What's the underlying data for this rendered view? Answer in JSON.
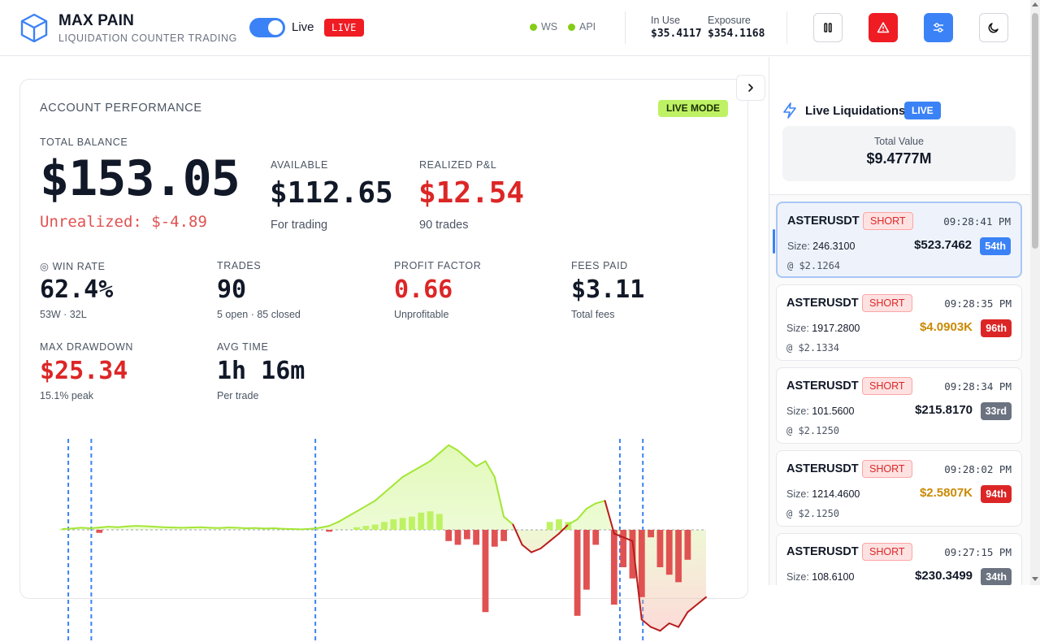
{
  "header": {
    "title": "MAX PAIN",
    "subtitle": "LIQUIDATION COUNTER TRADING",
    "toggle_label": "Live",
    "live_badge": "LIVE",
    "ws_label": "WS",
    "api_label": "API",
    "in_use_label": "In Use",
    "in_use_value": "$35.4117",
    "exposure_label": "Exposure",
    "exposure_value": "$354.1168",
    "icons": [
      "cube-logo-icon",
      "pause-icon",
      "alert-triangle-icon",
      "sliders-icon",
      "moon-icon"
    ],
    "colors": {
      "accent": "#3b82f6",
      "danger": "#ef1c24",
      "ok": "#84cc16"
    }
  },
  "performance": {
    "title": "ACCOUNT PERFORMANCE",
    "mode_badge": "LIVE MODE",
    "total_balance_label": "TOTAL BALANCE",
    "total_balance": "$153.05",
    "unrealized": "Unrealized: $-4.89",
    "available_label": "AVAILABLE",
    "available": "$112.65",
    "available_sub": "For trading",
    "realized_label": "REALIZED P&L",
    "realized": "$12.54",
    "realized_sub": "90 trades",
    "win_rate_label": "WIN RATE",
    "win_rate": "62.4%",
    "win_rate_sub": "53W · 32L",
    "trades_label": "TRADES",
    "trades": "90",
    "trades_sub": "5 open · 85 closed",
    "profit_factor_label": "PROFIT FACTOR",
    "profit_factor": "0.66",
    "profit_factor_sub": "Unprofitable",
    "fees_label": "FEES PAID",
    "fees": "$3.11",
    "fees_sub": "Total fees",
    "drawdown_label": "MAX DRAWDOWN",
    "drawdown": "$25.34",
    "drawdown_sub": "15.1% peak",
    "avg_time_label": "AVG TIME",
    "avg_time": "1h 16m",
    "avg_time_sub": "Per trade"
  },
  "chart_data": {
    "type": "area",
    "series": [
      {
        "values": [
          0.3,
          0.5,
          0.8,
          0.6,
          0.9,
          1.2,
          1.0,
          1.3,
          1.5,
          1.4,
          1.2,
          1.0,
          0.9,
          0.8,
          0.9,
          1.0,
          0.8,
          0.7,
          0.9,
          0.8,
          0.6,
          0.7,
          0.5,
          0.6,
          0.4,
          0.3,
          0.2,
          0.4,
          0.8,
          1.5,
          3.0,
          5.0,
          7.0,
          9.0,
          11.0,
          14.0,
          17.0,
          20.0,
          22.0,
          24.0,
          26.0,
          29.0,
          32.0,
          30.0,
          27.0,
          24.0,
          26.0,
          20.0,
          5.0,
          2.0,
          -4.0,
          -6.0,
          -5.0,
          -3.0,
          -1.0,
          2.0,
          4.0,
          8.0,
          10.0,
          11.0,
          -1.0,
          -2.0,
          -3.0,
          -24.0,
          -26.0,
          -27.0,
          -25.0,
          -26.0,
          -22.0,
          -20.0,
          -18.0
        ]
      },
      {
        "values": [
          0.2,
          0,
          0,
          0,
          -0.8,
          0,
          0,
          0,
          0,
          0,
          0,
          0,
          0,
          0,
          0,
          0,
          0,
          0,
          0,
          0,
          0,
          0,
          0,
          0,
          0,
          0,
          0,
          0,
          0,
          -0.5,
          0,
          0,
          1.0,
          1.5,
          2.0,
          3.0,
          4.0,
          4.5,
          5.0,
          6.5,
          7.0,
          6.0,
          -3.0,
          -4.0,
          -2.5,
          -4.0,
          -22.0,
          -4.5,
          -3.0,
          0,
          0,
          0,
          0,
          3.0,
          4.0,
          3.0,
          -23.0,
          -16.0,
          -4.0,
          0,
          -20.0,
          -10.0,
          -13.0,
          -18.0,
          -2.0,
          -10.0,
          -12.0,
          -14.0,
          -8.0,
          0,
          0
        ]
      }
    ],
    "vlines": [
      1,
      5,
      44,
      97,
      101
    ],
    "ylim": [
      -30,
      35
    ]
  },
  "liquidations": {
    "title": "Live Liquidations",
    "badge": "LIVE",
    "total_label": "Total Value",
    "total_value": "$9.4777M",
    "items": [
      {
        "symbol": "ASTERUSDT",
        "side": "SHORT",
        "time": "09:28:41 PM",
        "size_label": "Size:",
        "size": "246.3100",
        "price": "@ $2.1264",
        "value": "$523.7462",
        "rank": "54th",
        "rank_color": "blue",
        "value_color": "default"
      },
      {
        "symbol": "ASTERUSDT",
        "side": "SHORT",
        "time": "09:28:35 PM",
        "size_label": "Size:",
        "size": "1917.2800",
        "price": "@ $2.1334",
        "value": "$4.0903K",
        "rank": "96th",
        "rank_color": "red",
        "value_color": "gold"
      },
      {
        "symbol": "ASTERUSDT",
        "side": "SHORT",
        "time": "09:28:34 PM",
        "size_label": "Size:",
        "size": "101.5600",
        "price": "@ $2.1250",
        "value": "$215.8170",
        "rank": "33rd",
        "rank_color": "gray",
        "value_color": "default"
      },
      {
        "symbol": "ASTERUSDT",
        "side": "SHORT",
        "time": "09:28:02 PM",
        "size_label": "Size:",
        "size": "1214.4600",
        "price": "@ $2.1250",
        "value": "$2.5807K",
        "rank": "94th",
        "rank_color": "red",
        "value_color": "gold"
      },
      {
        "symbol": "ASTERUSDT",
        "side": "SHORT",
        "time": "09:27:15 PM",
        "size_label": "Size:",
        "size": "108.6100",
        "price": "",
        "value": "$230.3499",
        "rank": "34th",
        "rank_color": "gray",
        "value_color": "default"
      }
    ]
  }
}
